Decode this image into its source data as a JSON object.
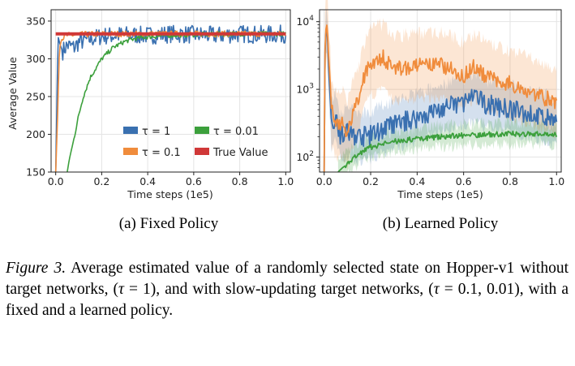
{
  "chart_data": [
    {
      "id": "fixed",
      "type": "line",
      "subcaption": "(a) Fixed Policy",
      "xlabel": "Time steps (1e5)",
      "ylabel": "Average Value",
      "xlim": [
        -0.02,
        1.02
      ],
      "ylim": [
        150,
        365
      ],
      "xticks": [
        0.0,
        0.2,
        0.4,
        0.6,
        0.8,
        1.0
      ],
      "xtick_labels": [
        "0.0",
        "0.2",
        "0.4",
        "0.6",
        "0.8",
        "1.0"
      ],
      "yticks": [
        150,
        200,
        250,
        300,
        350
      ],
      "ytick_labels": [
        "150",
        "200",
        "250",
        "300",
        "350"
      ],
      "grid": true,
      "series": [
        {
          "name": "τ = 1",
          "color": "#3a70b0",
          "noise": 12,
          "x": [
            0.0,
            0.01,
            0.02,
            0.03,
            0.05,
            0.08,
            0.1,
            0.15,
            0.2,
            0.3,
            0.4,
            0.5,
            0.6,
            0.7,
            0.8,
            0.9,
            1.0
          ],
          "y": [
            150,
            330,
            318,
            310,
            318,
            315,
            322,
            326,
            330,
            332,
            331,
            333,
            332,
            331,
            333,
            332,
            333
          ]
        },
        {
          "name": "τ = 0.1",
          "color": "#f08c3c",
          "noise": 4,
          "x": [
            0.0,
            0.01,
            0.015,
            0.02,
            0.03,
            0.05,
            0.1,
            0.2,
            0.3,
            0.4,
            0.5,
            0.6,
            0.7,
            0.8,
            0.9,
            1.0
          ],
          "y": [
            150,
            240,
            300,
            320,
            328,
            331,
            332,
            333,
            333,
            333,
            333,
            333,
            333,
            333,
            333,
            333
          ]
        },
        {
          "name": "τ = 0.01",
          "color": "#3ca03c",
          "noise": 3,
          "x": [
            0.05,
            0.06,
            0.08,
            0.1,
            0.12,
            0.15,
            0.2,
            0.25,
            0.3,
            0.35,
            0.4,
            0.5,
            0.6,
            0.7,
            0.8,
            0.9,
            1.0
          ],
          "y": [
            150,
            168,
            195,
            225,
            250,
            275,
            300,
            315,
            323,
            327,
            329,
            331,
            332,
            333,
            333,
            333,
            333
          ]
        },
        {
          "name": "True Value",
          "color": "#d03838",
          "noise": 0,
          "x": [
            0.0,
            1.0
          ],
          "y": [
            333,
            333
          ]
        }
      ]
    },
    {
      "id": "learned",
      "type": "line",
      "scale": "log",
      "subcaption": "(b) Learned Policy",
      "xlabel": "Time steps (1e5)",
      "ylabel": "",
      "xlim": [
        -0.02,
        1.02
      ],
      "ylim": [
        60,
        15000
      ],
      "xticks": [
        0.0,
        0.2,
        0.4,
        0.6,
        0.8,
        1.0
      ],
      "xtick_labels": [
        "0.0",
        "0.2",
        "0.4",
        "0.6",
        "0.8",
        "1.0"
      ],
      "yticks": [
        100,
        1000,
        10000
      ],
      "ytick_labels": [
        {
          "base": "10",
          "exp": "2"
        },
        {
          "base": "10",
          "exp": "3"
        },
        {
          "base": "10",
          "exp": "4"
        }
      ],
      "grid": true,
      "series": [
        {
          "name": "τ = 1",
          "color": "#3a70b0",
          "noise": 0.15,
          "band_factor": 2.2,
          "x": [
            0.0,
            0.01,
            0.02,
            0.03,
            0.05,
            0.07,
            0.1,
            0.15,
            0.2,
            0.3,
            0.4,
            0.5,
            0.6,
            0.65,
            0.7,
            0.8,
            0.9,
            1.0
          ],
          "y": [
            60,
            9000,
            1500,
            300,
            400,
            200,
            230,
            200,
            210,
            300,
            380,
            500,
            650,
            750,
            600,
            500,
            420,
            330
          ]
        },
        {
          "name": "τ = 0.1",
          "color": "#f08c3c",
          "noise": 0.12,
          "band_factor": 3,
          "x": [
            0.0,
            0.01,
            0.02,
            0.03,
            0.05,
            0.08,
            0.1,
            0.15,
            0.2,
            0.25,
            0.3,
            0.4,
            0.5,
            0.6,
            0.65,
            0.7,
            0.8,
            0.9,
            1.0
          ],
          "y": [
            60,
            10000,
            2500,
            500,
            300,
            300,
            200,
            700,
            2500,
            3000,
            2000,
            2200,
            2300,
            1600,
            2200,
            1500,
            1200,
            900,
            600
          ]
        },
        {
          "name": "τ = 0.01",
          "color": "#3ca03c",
          "noise": 0.04,
          "band_factor": 1.4,
          "x": [
            0.06,
            0.07,
            0.08,
            0.1,
            0.15,
            0.2,
            0.3,
            0.4,
            0.5,
            0.6,
            0.7,
            0.8,
            0.9,
            1.0
          ],
          "y": [
            60,
            65,
            70,
            78,
            110,
            140,
            170,
            185,
            200,
            210,
            215,
            220,
            220,
            215
          ]
        }
      ]
    }
  ],
  "legend": {
    "entries": [
      "τ = 1",
      "τ = 0.01",
      "τ = 0.1",
      "True Value"
    ],
    "colors": [
      "#3a70b0",
      "#3ca03c",
      "#f08c3c",
      "#d03838"
    ]
  },
  "caption": {
    "label": "Figure 3.",
    "text1": " Average estimated value of a randomly selected state on Hopper-v1 without target networks, (",
    "tau_symbol": "τ",
    "text2": " = 1), and with slow-updating target networks, (",
    "text3": " = 0.1, 0.01), with a fixed and a learned policy."
  }
}
